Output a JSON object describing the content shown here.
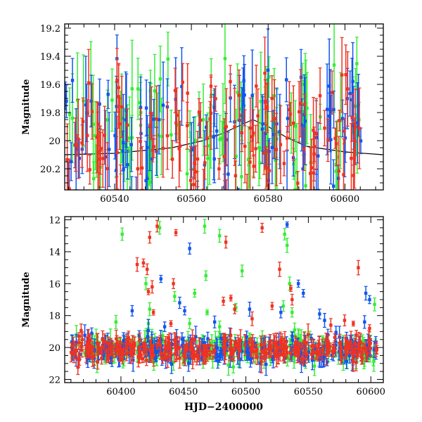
{
  "colors": {
    "green": "#33ee33",
    "blue": "#1155ee",
    "red": "#ee3322",
    "axis": "#000000",
    "model": "#000000"
  },
  "chart_data": [
    {
      "type": "scatter",
      "title": "",
      "xlabel": "",
      "ylabel": "Magnitude",
      "xlim": [
        60527,
        60610
      ],
      "ylim": [
        20.35,
        19.17
      ],
      "y_inverted": true,
      "x_ticks": [
        60540,
        60560,
        60580,
        60600
      ],
      "y_ticks": [
        19.2,
        19.4,
        19.6,
        19.8,
        20,
        20.2
      ],
      "x_tick_labels": [
        "60540",
        "60560",
        "60580",
        "60600"
      ],
      "y_tick_labels": [
        "19.2",
        "19.4",
        "19.6",
        "19.8",
        "20",
        "20.2"
      ],
      "model_curve": {
        "x": [
          60527,
          60540,
          60555,
          60563,
          60568,
          60572,
          60576,
          60580,
          60585,
          60590,
          60600,
          60610
        ],
        "y": [
          20.1,
          20.09,
          20.05,
          20.0,
          19.95,
          19.9,
          19.85,
          19.9,
          19.98,
          20.04,
          20.08,
          20.1
        ]
      },
      "series": [
        {
          "color": "green",
          "x_range": [
            60527,
            60605
          ],
          "mag_center": 19.95,
          "mag_sigma": 0.22,
          "err_mean": 0.22,
          "n_points": 110
        },
        {
          "color": "blue",
          "x_range": [
            60527,
            60605
          ],
          "mag_center": 19.95,
          "mag_sigma": 0.22,
          "err_mean": 0.22,
          "n_points": 110
        },
        {
          "color": "red",
          "x_range": [
            60527,
            60605
          ],
          "mag_center": 19.95,
          "mag_sigma": 0.2,
          "err_mean": 0.18,
          "n_points": 130
        }
      ]
    },
    {
      "type": "scatter",
      "title": "",
      "xlabel": "HJD−2400000",
      "ylabel": "Magnitude",
      "xlim": [
        60355,
        60610
      ],
      "ylim": [
        22.2,
        11.8
      ],
      "y_inverted": true,
      "x_ticks": [
        60400,
        60450,
        60500,
        60550,
        60600
      ],
      "y_ticks": [
        12,
        14,
        16,
        18,
        20,
        22
      ],
      "x_tick_labels": [
        "60400",
        "60450",
        "60500",
        "60550",
        "60600"
      ],
      "y_tick_labels": [
        "12",
        "14",
        "16",
        "18",
        "20",
        "22"
      ],
      "series": [
        {
          "color": "green",
          "x_range": [
            60360,
            60605
          ],
          "mag_center": 20.1,
          "mag_sigma": 0.4,
          "n_points": 260,
          "outliers": [
            [
              60401,
              12.9
            ],
            [
              60431,
              12.5
            ],
            [
              60467,
              12.4
            ],
            [
              60479,
              13.0
            ],
            [
              60497,
              15.2
            ],
            [
              60531,
              12.9
            ],
            [
              60533,
              13.6
            ],
            [
              60468,
              15.5
            ],
            [
              60420,
              16.0
            ],
            [
              60459,
              16.6
            ],
            [
              60443,
              16.8
            ],
            [
              60535,
              16.0
            ],
            [
              60423,
              17.6
            ],
            [
              60492,
              17.5
            ],
            [
              60530,
              17.4
            ],
            [
              60537,
              17.8
            ],
            [
              60469,
              17.8
            ],
            [
              60603,
              17.3
            ],
            [
              60396,
              18.4
            ],
            [
              60422,
              18.5
            ],
            [
              60455,
              18.5
            ],
            [
              60479,
              18.7
            ],
            [
              60539,
              18.9
            ]
          ]
        },
        {
          "color": "blue",
          "x_range": [
            60360,
            60605
          ],
          "mag_center": 20.1,
          "mag_sigma": 0.4,
          "n_points": 260,
          "outliers": [
            [
              60533,
              12.3
            ],
            [
              60455,
              13.8
            ],
            [
              60432,
              15.7
            ],
            [
              60447,
              17.2
            ],
            [
              60451,
              17.7
            ],
            [
              60542,
              16.0
            ],
            [
              60546,
              16.6
            ],
            [
              60596,
              16.6
            ],
            [
              60409,
              17.7
            ],
            [
              60503,
              17.6
            ],
            [
              60528,
              17.8
            ],
            [
              60559,
              17.9
            ],
            [
              60563,
              18.3
            ],
            [
              60595,
              18.4
            ],
            [
              60599,
              17.0
            ],
            [
              60435,
              18.7
            ],
            [
              60475,
              18.4
            ]
          ]
        },
        {
          "color": "red",
          "x_range": [
            60360,
            60605
          ],
          "mag_center": 20.1,
          "mag_sigma": 0.35,
          "n_points": 300,
          "outliers": [
            [
              60423,
              13.1
            ],
            [
              60429,
              12.4
            ],
            [
              60444,
              12.8
            ],
            [
              60484,
              13.4
            ],
            [
              60513,
              12.5
            ],
            [
              60413,
              14.8
            ],
            [
              60418,
              14.7
            ],
            [
              60422,
              16.5
            ],
            [
              60421,
              15.1
            ],
            [
              60425,
              16.2
            ],
            [
              60442,
              16.0
            ],
            [
              60527,
              15.1
            ],
            [
              60536,
              16.3
            ],
            [
              60590,
              15.0
            ],
            [
              60426,
              17.8
            ],
            [
              60482,
              17.1
            ],
            [
              60488,
              16.9
            ],
            [
              60491,
              17.6
            ],
            [
              60521,
              17.4
            ],
            [
              60537,
              17.0
            ],
            [
              60568,
              18.6
            ],
            [
              60579,
              18.3
            ],
            [
              60586,
              18.5
            ],
            [
              60599,
              18.8
            ],
            [
              60440,
              18.5
            ],
            [
              60505,
              18.2
            ]
          ]
        }
      ]
    }
  ]
}
